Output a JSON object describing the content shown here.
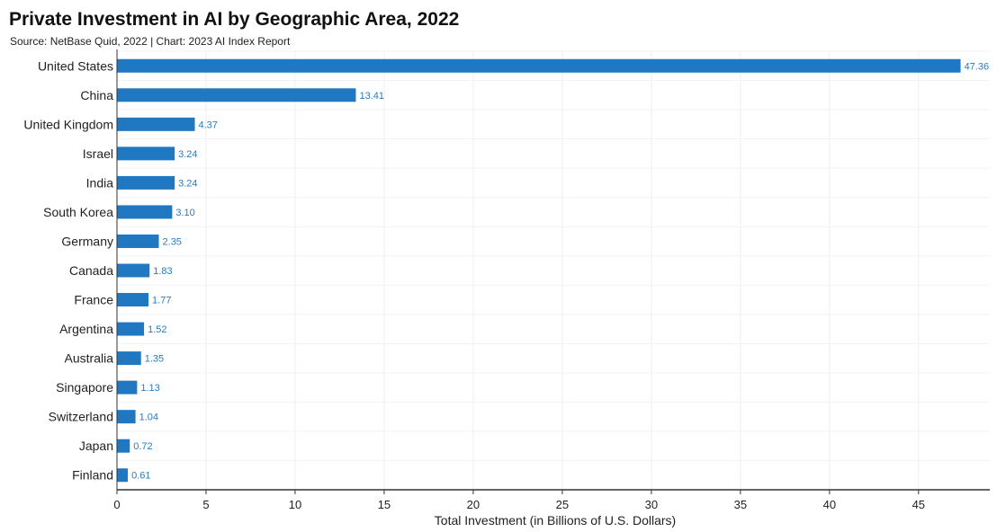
{
  "header": {
    "title": "Private Investment in AI by Geographic Area, 2022",
    "subtitle": "Source: NetBase Quid, 2022 | Chart: 2023 AI Index Report"
  },
  "chart_data": {
    "type": "bar",
    "orientation": "horizontal",
    "title": "Private Investment in AI by Geographic Area, 2022",
    "subtitle": "Source: NetBase Quid, 2022 | Chart: 2023 AI Index Report",
    "xlabel": "Total Investment (in Billions of U.S. Dollars)",
    "ylabel": "",
    "xlim": [
      0,
      49
    ],
    "xticks": [
      0,
      5,
      10,
      15,
      20,
      25,
      30,
      35,
      40,
      45
    ],
    "grid": true,
    "bar_color": "#1f78c1",
    "label_color": "#2b7bb9",
    "categories": [
      "United States",
      "China",
      "United Kingdom",
      "Israel",
      "India",
      "South Korea",
      "Germany",
      "Canada",
      "France",
      "Argentina",
      "Australia",
      "Singapore",
      "Switzerland",
      "Japan",
      "Finland"
    ],
    "values": [
      47.36,
      13.41,
      4.37,
      3.24,
      3.24,
      3.1,
      2.35,
      1.83,
      1.77,
      1.52,
      1.35,
      1.13,
      1.04,
      0.72,
      0.61
    ],
    "value_labels": [
      "47.36",
      "13.41",
      "4.37",
      "3.24",
      "3.24",
      "3.10",
      "2.35",
      "1.83",
      "1.77",
      "1.52",
      "1.35",
      "1.13",
      "1.04",
      "0.72",
      "0.61"
    ]
  }
}
